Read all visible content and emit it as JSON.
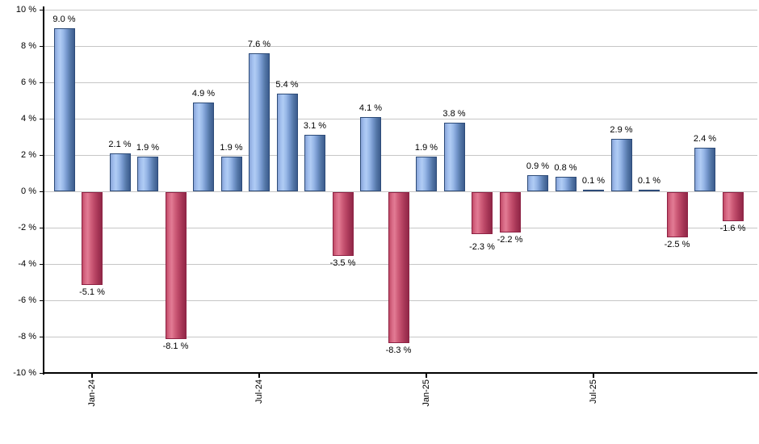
{
  "chart_data": {
    "type": "bar",
    "title": "",
    "xlabel": "",
    "ylabel": "",
    "unit": "%",
    "bar_count": 25,
    "values": [
      9.0,
      -5.1,
      2.1,
      1.9,
      -8.1,
      4.9,
      1.9,
      7.6,
      5.4,
      3.1,
      -3.5,
      4.1,
      -8.3,
      1.9,
      3.8,
      -2.3,
      -2.2,
      0.9,
      0.8,
      0.1,
      2.9,
      0.1,
      -2.5,
      2.4,
      -1.6
    ],
    "value_label_format": "{value} %",
    "value_labels": [
      "9.0 %",
      "-5.1 %",
      "2.1 %",
      "1.9 %",
      "-8.1 %",
      "4.9 %",
      "1.9 %",
      "7.6 %",
      "5.4 %",
      "3.1 %",
      "-3.5 %",
      "4.1 %",
      "-8.3 %",
      "1.9 %",
      "3.8 %",
      "-2.3 %",
      "-2.2 %",
      "0.9 %",
      "0.8 %",
      "0.1 %",
      "2.9 %",
      "0.1 %",
      "-2.5 %",
      "2.4 %",
      "-1.6 %"
    ],
    "x_ticks": [
      {
        "label": "Jan-24",
        "bar_index": 2
      },
      {
        "label": "Jul-24",
        "bar_index": 8
      },
      {
        "label": "Jan-25",
        "bar_index": 14
      },
      {
        "label": "Jul-25",
        "bar_index": 20
      }
    ],
    "y_ticks": [
      10,
      8,
      6,
      4,
      2,
      0,
      -2,
      -4,
      -6,
      -8,
      -10
    ],
    "y_tick_labels": [
      "10 %",
      "8 %",
      "6 %",
      "4 %",
      "2 %",
      "0 %",
      "-2 %",
      "-4 %",
      "-6 %",
      "-8 %",
      "-10 %"
    ],
    "ylim": [
      -10,
      10
    ],
    "grid": true,
    "legend": false,
    "x_tick_label_rotation_deg": -90,
    "value_label_stagger_offsets": {
      "15": 7
    },
    "colors": {
      "positive_bar": "#7496cc",
      "positive_bar_highlight": "#b0ccf4",
      "positive_bar_edge": "#2d4b78",
      "negative_bar": "#cf5e7a",
      "negative_bar_highlight": "#e27b94",
      "negative_bar_edge": "#8e2244",
      "gridline": "#c6c6c6",
      "axis": "#000000",
      "background": "#ffffff",
      "text": "#000000"
    }
  }
}
